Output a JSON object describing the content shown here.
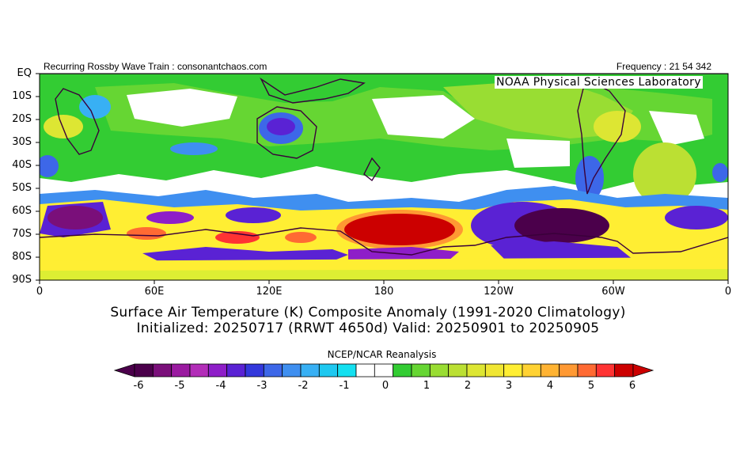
{
  "header": {
    "left": "Recurring Rossby Wave Train : consonantchaos.com",
    "right": "Frequency : 21 54 342",
    "lab": "NOAA Physical Sciences Laboratory"
  },
  "map": {
    "lat_labels": [
      "EQ",
      "10S",
      "20S",
      "30S",
      "40S",
      "50S",
      "60S",
      "70S",
      "80S",
      "90S"
    ],
    "lon_labels": [
      "0",
      "60E",
      "120E",
      "180",
      "120W",
      "60W",
      "0"
    ]
  },
  "titles": {
    "line1": "Surface Air Temperature (K) Composite Anomaly (1991-2020 Climatology)",
    "line2": "Initialized: 20250717 (RRWT 4650d) Valid: 20250901 to 20250905"
  },
  "colorbar": {
    "source": "NCEP/NCAR Reanalysis",
    "tick_labels": [
      "-6",
      "-5",
      "-4",
      "-3",
      "-2",
      "-1",
      "0",
      "1",
      "2",
      "3",
      "4",
      "5",
      "6"
    ],
    "colors": [
      "#4b004b",
      "#7a0f7a",
      "#9a1aa0",
      "#b22db8",
      "#8e1ec8",
      "#5a22d4",
      "#3338dc",
      "#3d67e8",
      "#3f8ff0",
      "#38b0f4",
      "#1ec8f0",
      "#14e0f0",
      "#ffffff",
      "#ffffff",
      "#33cc33",
      "#66d633",
      "#99dd33",
      "#bbe033",
      "#dde633",
      "#f0e633",
      "#ffee33",
      "#ffd233",
      "#ffb333",
      "#ff9933",
      "#ff6a33",
      "#ff3333",
      "#cc0000"
    ]
  }
}
